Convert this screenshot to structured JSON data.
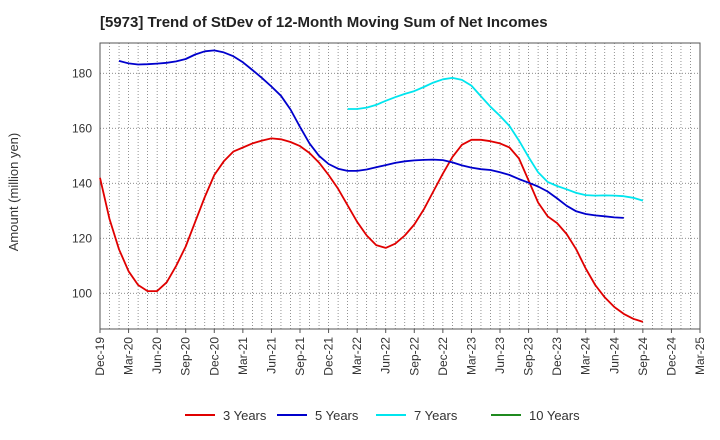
{
  "chart_data": {
    "type": "line",
    "title": "[5973]  Trend of StDev of 12-Month Moving Sum of Net Incomes",
    "ylabel": "Amount (million yen)",
    "xlabel": "",
    "ylim": [
      87,
      191
    ],
    "yticks": [
      100,
      120,
      140,
      160,
      180
    ],
    "xlim": [
      "2019-12",
      "2025-03"
    ],
    "xticks": [
      "Dec-19",
      "Mar-20",
      "Jun-20",
      "Sep-20",
      "Dec-20",
      "Mar-21",
      "Jun-21",
      "Sep-21",
      "Dec-21",
      "Mar-22",
      "Jun-22",
      "Sep-22",
      "Dec-22",
      "Mar-23",
      "Jun-23",
      "Sep-23",
      "Dec-23",
      "Mar-24",
      "Jun-24",
      "Sep-24",
      "Dec-24",
      "Mar-25"
    ],
    "grid": true,
    "legend_position": "bottom",
    "series": [
      {
        "name": "3 Years",
        "color": "#e00000",
        "start": "2019-12",
        "values": [
          142,
          127,
          116,
          108,
          103,
          100.8,
          100.8,
          104,
          110,
          117,
          126,
          135,
          143,
          148,
          151.5,
          153,
          154.5,
          155.5,
          156.3,
          156,
          155,
          153.5,
          151,
          147.5,
          143,
          138,
          132,
          126,
          121,
          117.5,
          116.5,
          118,
          121,
          125,
          130.5,
          137,
          143.5,
          149.5,
          154,
          155.8,
          155.8,
          155.3,
          154.5,
          153,
          149,
          141,
          133,
          128,
          125.5,
          121.5,
          116,
          109,
          103,
          98.5,
          95,
          92.5,
          90.7,
          89.6
        ]
      },
      {
        "name": "5 Years",
        "color": "#0000cc",
        "start": "2020-02",
        "values": [
          184.5,
          183.6,
          183.2,
          183.3,
          183.5,
          183.8,
          184.3,
          185.2,
          186.8,
          188,
          188.3,
          187.6,
          186.2,
          184,
          181.2,
          178.3,
          175.2,
          171.8,
          166.8,
          160.5,
          154.5,
          150,
          147,
          145.3,
          144.5,
          144.5,
          145,
          145.8,
          146.6,
          147.4,
          148,
          148.3,
          148.5,
          148.6,
          148.4,
          147.6,
          146.5,
          145.7,
          145.1,
          144.8,
          144,
          143,
          141.5,
          140.2,
          138.8,
          137,
          134.5,
          131.8,
          129.8,
          128.8,
          128.3,
          128,
          127.6,
          127.4
        ]
      },
      {
        "name": "7 Years",
        "color": "#00e5ee",
        "start": "2022-02",
        "values": [
          167,
          167,
          167.5,
          168.5,
          170,
          171.3,
          172.5,
          173.5,
          175,
          176.6,
          177.8,
          178.3,
          177.6,
          175.5,
          171.6,
          167.8,
          164.5,
          160.8,
          155.5,
          149.5,
          144,
          140.5,
          139,
          137.8,
          136.5,
          135.7,
          135.5,
          135.6,
          135.5,
          135.3,
          134.7,
          133.7
        ]
      },
      {
        "name": "10 Years",
        "color": "#1f8a1f",
        "start": "2019-12",
        "values": []
      }
    ]
  }
}
